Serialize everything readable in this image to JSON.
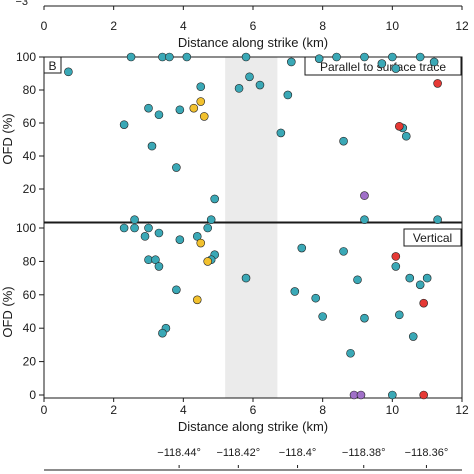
{
  "colors": {
    "teal": "#3aa8b6",
    "yellow": "#f2c12e",
    "red": "#e53935",
    "purple": "#a070c8",
    "band": "#ebebeb",
    "frame": "#1a1a1a"
  },
  "chart_data": [
    {
      "type": "scatter",
      "panel": "top-cropped",
      "xlabel": "Distance along strike (km)",
      "ylim_visible_tick": "−3",
      "xlim": [
        0,
        12
      ],
      "xticks": [
        "0",
        "2",
        "4",
        "6",
        "8",
        "10",
        "12"
      ]
    },
    {
      "type": "scatter",
      "panel_label": "B",
      "annotation": "Parallel to surface trace",
      "ylabel": "OFD (%)",
      "xlim": [
        0,
        12
      ],
      "ylim": [
        0,
        100
      ],
      "yticks": [
        "20",
        "40",
        "60",
        "80",
        "100"
      ],
      "shaded_band_km": [
        5.2,
        6.7
      ],
      "points": [
        {
          "x": 0.7,
          "y": 91,
          "c": "teal"
        },
        {
          "x": 2.5,
          "y": 100,
          "c": "teal"
        },
        {
          "x": 3.4,
          "y": 100,
          "c": "teal"
        },
        {
          "x": 3.6,
          "y": 100,
          "c": "teal"
        },
        {
          "x": 4.1,
          "y": 100,
          "c": "teal"
        },
        {
          "x": 5.8,
          "y": 100,
          "c": "teal"
        },
        {
          "x": 8.4,
          "y": 100,
          "c": "teal"
        },
        {
          "x": 9.2,
          "y": 100,
          "c": "teal"
        },
        {
          "x": 10.0,
          "y": 100,
          "c": "teal"
        },
        {
          "x": 10.8,
          "y": 100,
          "c": "teal"
        },
        {
          "x": 7.1,
          "y": 97,
          "c": "teal"
        },
        {
          "x": 7.9,
          "y": 99,
          "c": "teal"
        },
        {
          "x": 9.7,
          "y": 96,
          "c": "teal"
        },
        {
          "x": 11.2,
          "y": 97,
          "c": "teal"
        },
        {
          "x": 10.1,
          "y": 93,
          "c": "teal"
        },
        {
          "x": 5.9,
          "y": 88,
          "c": "teal"
        },
        {
          "x": 6.2,
          "y": 83,
          "c": "teal"
        },
        {
          "x": 5.6,
          "y": 81,
          "c": "teal"
        },
        {
          "x": 4.5,
          "y": 82,
          "c": "teal"
        },
        {
          "x": 4.5,
          "y": 73,
          "c": "yellow"
        },
        {
          "x": 4.3,
          "y": 69,
          "c": "yellow"
        },
        {
          "x": 4.6,
          "y": 64,
          "c": "yellow"
        },
        {
          "x": 3.0,
          "y": 69,
          "c": "teal"
        },
        {
          "x": 3.3,
          "y": 65,
          "c": "teal"
        },
        {
          "x": 3.9,
          "y": 68,
          "c": "teal"
        },
        {
          "x": 2.3,
          "y": 59,
          "c": "teal"
        },
        {
          "x": 3.1,
          "y": 46,
          "c": "teal"
        },
        {
          "x": 3.8,
          "y": 33,
          "c": "teal"
        },
        {
          "x": 4.9,
          "y": 14,
          "c": "teal"
        },
        {
          "x": 7.0,
          "y": 77,
          "c": "teal"
        },
        {
          "x": 6.8,
          "y": 54,
          "c": "teal"
        },
        {
          "x": 8.6,
          "y": 49,
          "c": "teal"
        },
        {
          "x": 10.3,
          "y": 57,
          "c": "teal"
        },
        {
          "x": 10.4,
          "y": 52,
          "c": "teal"
        },
        {
          "x": 10.2,
          "y": 58,
          "c": "red"
        },
        {
          "x": 11.3,
          "y": 84,
          "c": "red"
        },
        {
          "x": 9.2,
          "y": 16,
          "c": "purple"
        }
      ]
    },
    {
      "type": "scatter",
      "annotation": "Vertical",
      "ylabel": "OFD (%)",
      "xlabel": "Distance along strike (km)",
      "xlim": [
        0,
        12
      ],
      "ylim": [
        0,
        100
      ],
      "xticks": [
        "0",
        "2",
        "4",
        "6",
        "8",
        "10",
        "12"
      ],
      "yticks": [
        "0",
        "20",
        "40",
        "60",
        "80",
        "100"
      ],
      "shaded_band_km": [
        5.2,
        6.7
      ],
      "points": [
        {
          "x": 2.6,
          "y": 105,
          "c": "teal"
        },
        {
          "x": 4.8,
          "y": 105,
          "c": "teal"
        },
        {
          "x": 9.2,
          "y": 105,
          "c": "teal"
        },
        {
          "x": 11.3,
          "y": 105,
          "c": "teal"
        },
        {
          "x": 2.3,
          "y": 100,
          "c": "teal"
        },
        {
          "x": 2.6,
          "y": 100,
          "c": "teal"
        },
        {
          "x": 3.0,
          "y": 100,
          "c": "teal"
        },
        {
          "x": 4.7,
          "y": 100,
          "c": "teal"
        },
        {
          "x": 3.3,
          "y": 97,
          "c": "teal"
        },
        {
          "x": 2.9,
          "y": 95,
          "c": "teal"
        },
        {
          "x": 3.9,
          "y": 93,
          "c": "teal"
        },
        {
          "x": 4.4,
          "y": 95,
          "c": "teal"
        },
        {
          "x": 4.5,
          "y": 91,
          "c": "yellow"
        },
        {
          "x": 3.0,
          "y": 81,
          "c": "teal"
        },
        {
          "x": 3.2,
          "y": 81,
          "c": "teal"
        },
        {
          "x": 3.3,
          "y": 77,
          "c": "teal"
        },
        {
          "x": 4.9,
          "y": 84,
          "c": "teal"
        },
        {
          "x": 4.8,
          "y": 81,
          "c": "teal"
        },
        {
          "x": 4.7,
          "y": 80,
          "c": "yellow"
        },
        {
          "x": 4.4,
          "y": 57,
          "c": "yellow"
        },
        {
          "x": 3.8,
          "y": 63,
          "c": "teal"
        },
        {
          "x": 3.5,
          "y": 40,
          "c": "teal"
        },
        {
          "x": 3.4,
          "y": 37,
          "c": "teal"
        },
        {
          "x": 5.8,
          "y": 70,
          "c": "teal"
        },
        {
          "x": 7.4,
          "y": 88,
          "c": "teal"
        },
        {
          "x": 8.6,
          "y": 86,
          "c": "teal"
        },
        {
          "x": 7.2,
          "y": 62,
          "c": "teal"
        },
        {
          "x": 7.8,
          "y": 58,
          "c": "teal"
        },
        {
          "x": 8.0,
          "y": 47,
          "c": "teal"
        },
        {
          "x": 9.0,
          "y": 69,
          "c": "teal"
        },
        {
          "x": 9.2,
          "y": 46,
          "c": "teal"
        },
        {
          "x": 8.8,
          "y": 25,
          "c": "teal"
        },
        {
          "x": 10.1,
          "y": 77,
          "c": "teal"
        },
        {
          "x": 10.5,
          "y": 70,
          "c": "teal"
        },
        {
          "x": 11.0,
          "y": 70,
          "c": "teal"
        },
        {
          "x": 10.8,
          "y": 66,
          "c": "teal"
        },
        {
          "x": 10.2,
          "y": 48,
          "c": "teal"
        },
        {
          "x": 10.6,
          "y": 35,
          "c": "teal"
        },
        {
          "x": 10.1,
          "y": 83,
          "c": "red"
        },
        {
          "x": 10.9,
          "y": 55,
          "c": "red"
        },
        {
          "x": 8.9,
          "y": 0,
          "c": "purple"
        },
        {
          "x": 9.1,
          "y": 0,
          "c": "purple"
        },
        {
          "x": 10.0,
          "y": 0,
          "c": "teal"
        },
        {
          "x": 10.9,
          "y": 0,
          "c": "red"
        }
      ]
    },
    {
      "type": "axis",
      "panel": "longitude-axis-cropped",
      "ticks": [
        {
          "label": "−118.44°",
          "x": 2.3
        },
        {
          "label": "−118.42°",
          "x": 4.0
        },
        {
          "label": "−118.4°",
          "x": 5.7
        },
        {
          "label": "−118.38°",
          "x": 7.6
        },
        {
          "label": "−118.36°",
          "x": 9.4
        }
      ]
    }
  ]
}
